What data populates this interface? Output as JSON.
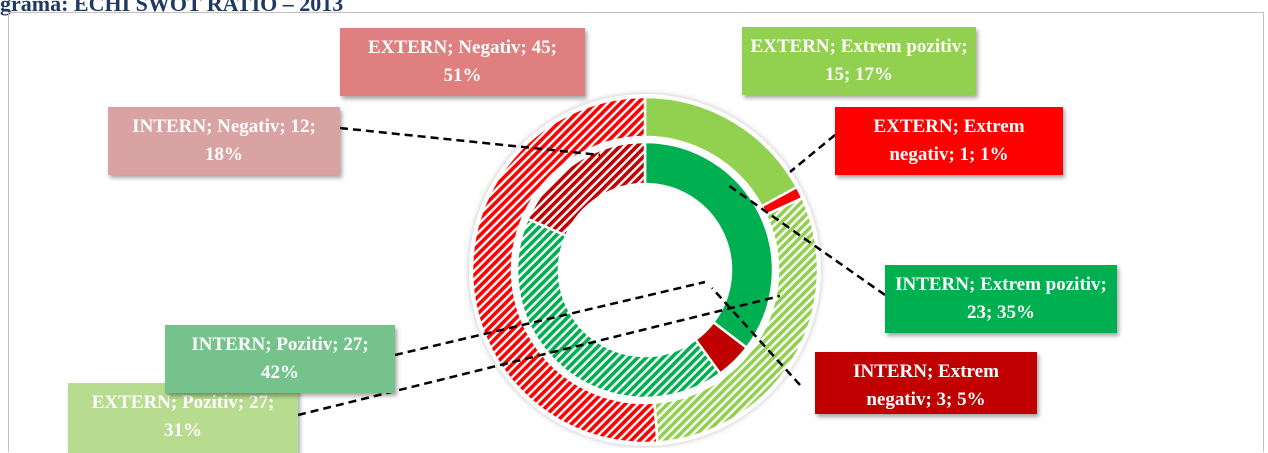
{
  "chart_data": {
    "type": "double-donut",
    "title": "grama: ECHI SWOT RATIO – 2013",
    "categories": [
      "Extrem pozitiv",
      "Extrem negativ",
      "Pozitiv",
      "Negativ"
    ],
    "series": [
      {
        "name": "EXTERN",
        "ring": "outer",
        "colors": [
          "#92d050",
          "#ff0000",
          "#92d050",
          "#ff0000"
        ],
        "hatched": [
          false,
          false,
          true,
          true
        ],
        "values": [
          15,
          1,
          27,
          45
        ],
        "value_labels": [
          "EXTERN; Extrem pozitiv; 15; 17%",
          "EXTERN; Extrem negativ; 1; 1%",
          "EXTERN; Pozitiv; 27; 31%",
          "EXTERN; Negativ; 45; 51%"
        ]
      },
      {
        "name": "INTERN",
        "ring": "inner",
        "colors": [
          "#00b050",
          "#c00000",
          "#00b050",
          "#c00000"
        ],
        "hatched": [
          false,
          false,
          true,
          true
        ],
        "values": [
          23,
          3,
          27,
          12
        ],
        "value_labels": [
          "INTERN; Extrem pozitiv; 23; 35%",
          "INTERN; Extrem negativ; 3; 5%",
          "INTERN; Pozitiv; 27; 42%",
          "INTERN; Negativ; 12; 18%"
        ]
      }
    ]
  }
}
